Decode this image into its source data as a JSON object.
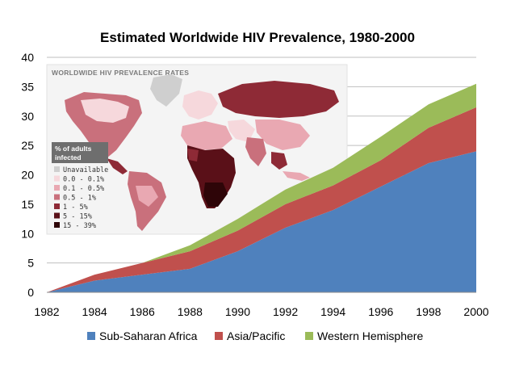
{
  "chart_data": {
    "type": "area",
    "stacked": true,
    "title": "Estimated Worldwide HIV Prevalence, 1980-2000",
    "xlabel": "",
    "ylabel": "",
    "x": [
      1982,
      1984,
      1986,
      1988,
      1990,
      1992,
      1994,
      1996,
      1998,
      2000
    ],
    "xlim": [
      1982,
      2000
    ],
    "ylim": [
      0,
      40
    ],
    "xticks": [
      "1982",
      "1984",
      "1986",
      "1988",
      "1990",
      "1992",
      "1994",
      "1996",
      "1998",
      "2000"
    ],
    "yticks": [
      "0",
      "5",
      "10",
      "15",
      "20",
      "25",
      "30",
      "35",
      "40"
    ],
    "grid": true,
    "legend_position": "bottom",
    "series": [
      {
        "name": "Sub-Saharan Africa",
        "color": "#4f81bd",
        "values": [
          0,
          2,
          3,
          4,
          7,
          11,
          14,
          18,
          22,
          24
        ]
      },
      {
        "name": "Asia/Pacific",
        "color": "#c0504d",
        "values": [
          0,
          1,
          2,
          3,
          3.5,
          4,
          4.2,
          4.5,
          6,
          7.5
        ]
      },
      {
        "name": "Western Hemisphere",
        "color": "#9bbb59",
        "values": [
          0,
          0,
          0,
          1,
          2,
          2.5,
          3,
          4,
          4,
          4
        ]
      }
    ]
  },
  "inset_map": {
    "title": "WORLDWIDE HIV PREVALENCE RATES",
    "legend_heading": [
      "% of adults",
      "infected"
    ],
    "legend_items": [
      {
        "label": "Unavailable",
        "color": "#cfcfcf"
      },
      {
        "label": "0.0 - 0.1%",
        "color": "#f6d8dc"
      },
      {
        "label": "0.1 - 0.5%",
        "color": "#e9a8b2"
      },
      {
        "label": "0.5 - 1%",
        "color": "#c9707c"
      },
      {
        "label": "1 - 5%",
        "color": "#8e2a36"
      },
      {
        "label": "5 - 15%",
        "color": "#5a1018"
      },
      {
        "label": "15 - 39%",
        "color": "#2e0508"
      }
    ]
  }
}
